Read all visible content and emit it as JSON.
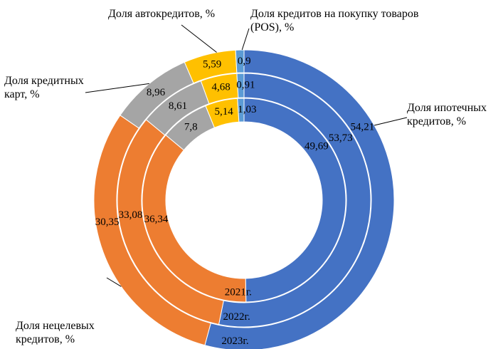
{
  "chart_data": {
    "type": "multi-donut",
    "categories": [
      "Доля ипотечных кредитов, %",
      "Доля нецелевых кредитов, %",
      "Доля кредитных карт, %",
      "Доля автокредитов, %",
      "Доля кредитов на покупку товаров  (POS), %"
    ],
    "colors": [
      "#4472c4",
      "#ed7d31",
      "#a5a5a5",
      "#ffc000",
      "#5b9bd5"
    ],
    "series": [
      {
        "name": "2021г.",
        "values": [
          49.69,
          36.34,
          7.8,
          5.14,
          1.03
        ],
        "value_labels": [
          "49,69",
          "36,34",
          "7,8",
          "5,14",
          "1,03"
        ]
      },
      {
        "name": "2022г.",
        "values": [
          53.73,
          33.08,
          8.61,
          4.68,
          0.91
        ],
        "value_labels": [
          "53,73",
          "33,08",
          "8,61",
          "4,68",
          "0,91"
        ]
      },
      {
        "name": "2023г.",
        "values": [
          54.21,
          30.35,
          8.96,
          5.59,
          0.9
        ],
        "value_labels": [
          "54,21",
          "30,35",
          "8,96",
          "5,59",
          "0,9"
        ]
      }
    ]
  }
}
